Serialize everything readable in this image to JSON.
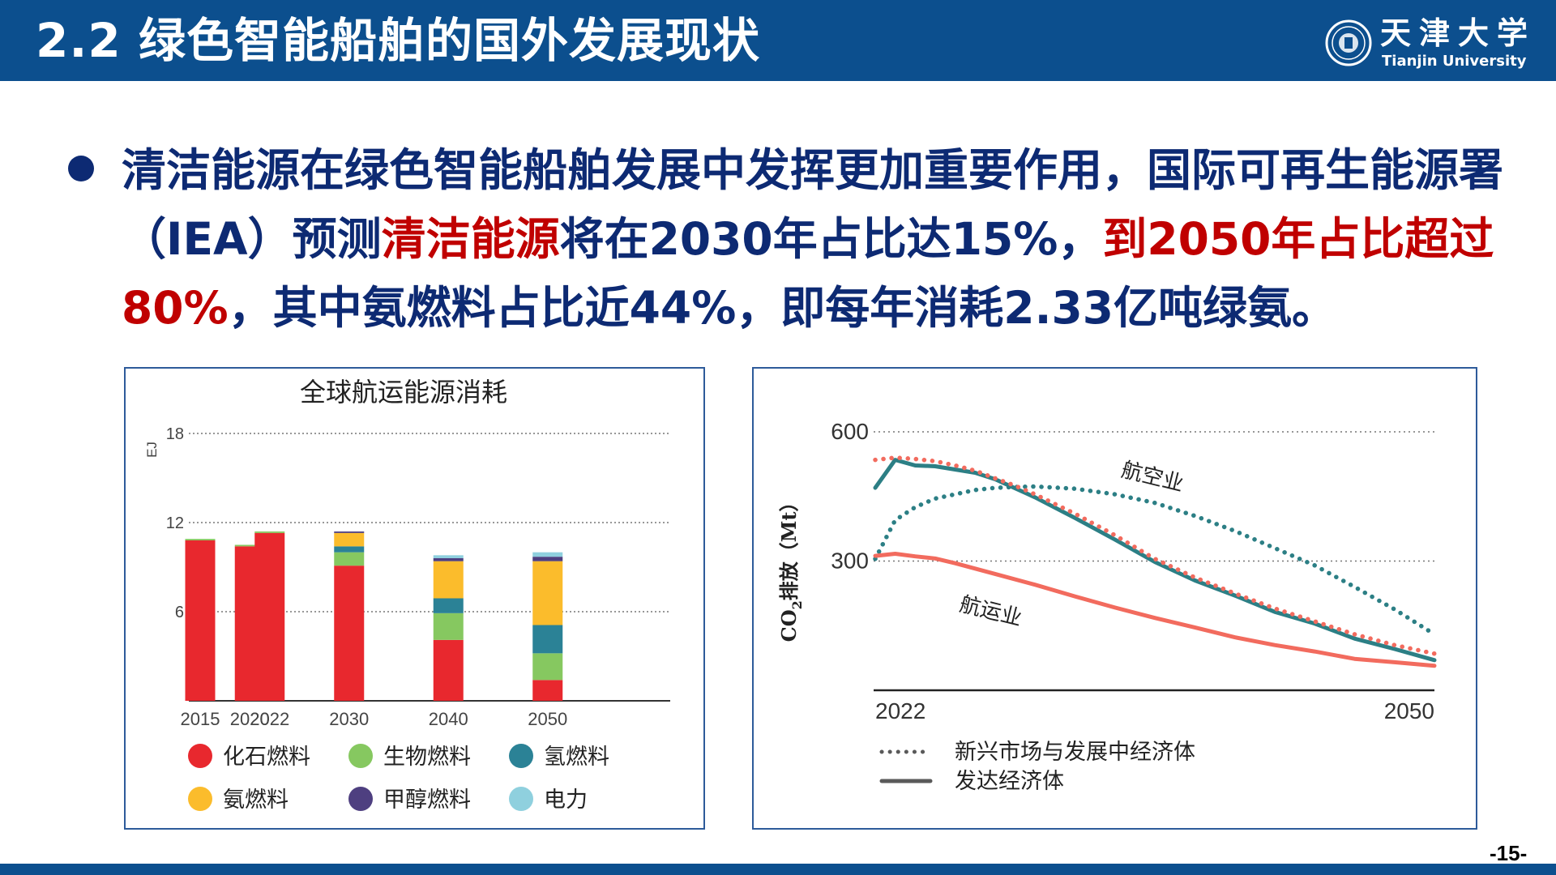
{
  "header": {
    "title": "2.2 绿色智能船舶的国外发展现状",
    "logo_cn": "天津大学",
    "logo_en": "Tianjin University"
  },
  "bullet": {
    "t1": "清洁能源在绿色智能船舶发展中发挥更加重要作用，国际可再生能源署（IEA）预测",
    "t2": "清洁能源",
    "t3": "将在2030年占比达15%，",
    "t4": "到2050年占比超过80%",
    "t5": "，其中氨燃料占比近44%，即每年消耗2.33亿吨绿氨。"
  },
  "page_number": "-15-",
  "chart_data": [
    {
      "type": "bar",
      "stacked": true,
      "title": "全球航运能源消耗",
      "ylabel": "EJ",
      "ylim": [
        0,
        18
      ],
      "yticks": [
        6,
        12,
        18
      ],
      "grid": "dotted horizontal",
      "categories": [
        "2015",
        "2020",
        "2022",
        "2030",
        "2040",
        "2050"
      ],
      "x_positions": [
        2015,
        2020,
        2022,
        2030,
        2040,
        2050
      ],
      "series": [
        {
          "name": "化石燃料",
          "color": "#e8282e",
          "values": [
            10.8,
            10.4,
            11.3,
            9.1,
            4.1,
            1.4
          ]
        },
        {
          "name": "生物燃料",
          "color": "#86c860",
          "values": [
            0.1,
            0.1,
            0.1,
            0.9,
            1.8,
            1.8
          ]
        },
        {
          "name": "氢燃料",
          "color": "#2b8296",
          "values": [
            0,
            0,
            0,
            0.4,
            1.0,
            1.9
          ]
        },
        {
          "name": "氨燃料",
          "color": "#fbbc2c",
          "values": [
            0,
            0,
            0,
            0.9,
            2.5,
            4.3
          ]
        },
        {
          "name": "甲醇燃料",
          "color": "#4e3f80",
          "values": [
            0,
            0,
            0,
            0.1,
            0.2,
            0.3
          ]
        },
        {
          "name": "电力",
          "color": "#8fd0de",
          "values": [
            0,
            0,
            0,
            0,
            0.2,
            0.3
          ]
        }
      ],
      "legend_position": "bottom"
    },
    {
      "type": "line",
      "ylabel_prefix": "CO",
      "ylabel_sub": "2",
      "ylabel_suffix": "排放（Mt）",
      "ylim": [
        0,
        600
      ],
      "yticks": [
        300,
        600
      ],
      "xlim": [
        2022,
        2050
      ],
      "xticks": [
        "2022",
        "2050"
      ],
      "grid": "dotted horizontal",
      "annotations": [
        {
          "text": "航空业",
          "x": 2035.8,
          "y": 480
        },
        {
          "text": "航运业",
          "x": 2027.7,
          "y": 168
        }
      ],
      "series": [
        {
          "group": "航空业",
          "style": "dotted",
          "color": "#2c7f85",
          "x": [
            2022,
            2022.5,
            2023,
            2024,
            2025,
            2026,
            2027,
            2028,
            2029,
            2030,
            2032,
            2034,
            2036,
            2038,
            2040,
            2042,
            2044,
            2046,
            2048,
            2050
          ],
          "y": [
            305,
            350,
            395,
            425,
            445,
            455,
            465,
            470,
            472,
            473,
            468,
            455,
            435,
            405,
            370,
            330,
            290,
            240,
            188,
            130
          ]
        },
        {
          "group": "航空业",
          "style": "solid",
          "color": "#2c7f85",
          "x": [
            2022,
            2023,
            2024,
            2025,
            2027,
            2028,
            2030,
            2032,
            2034,
            2036,
            2038,
            2040,
            2042,
            2044,
            2046,
            2048,
            2050
          ],
          "y": [
            470,
            535,
            522,
            520,
            505,
            490,
            448,
            400,
            350,
            298,
            255,
            220,
            182,
            155,
            120,
            96,
            70
          ]
        },
        {
          "group": "航运业",
          "style": "dotted",
          "color": "#f26b5e",
          "x": [
            2022,
            2023,
            2024,
            2025,
            2026,
            2027,
            2028,
            2029,
            2030,
            2032,
            2034,
            2036,
            2038,
            2040,
            2042,
            2044,
            2046,
            2048,
            2050
          ],
          "y": [
            535,
            540,
            537,
            532,
            522,
            510,
            492,
            475,
            455,
            410,
            360,
            305,
            262,
            225,
            190,
            160,
            130,
            105,
            85
          ]
        },
        {
          "group": "航运业",
          "style": "solid",
          "color": "#f26b5e",
          "x": [
            2022,
            2023,
            2024,
            2025,
            2026,
            2028,
            2030,
            2032,
            2034,
            2036,
            2038,
            2040,
            2042,
            2044,
            2046,
            2048,
            2050
          ],
          "y": [
            312,
            317,
            311,
            306,
            295,
            270,
            245,
            218,
            192,
            168,
            146,
            123,
            105,
            90,
            73,
            65,
            57
          ]
        }
      ],
      "legend": [
        {
          "style": "dotted",
          "label": "新兴市场与发展中经济体"
        },
        {
          "style": "solid",
          "label": "发达经济体"
        }
      ],
      "legend_position": "bottom-left"
    }
  ]
}
